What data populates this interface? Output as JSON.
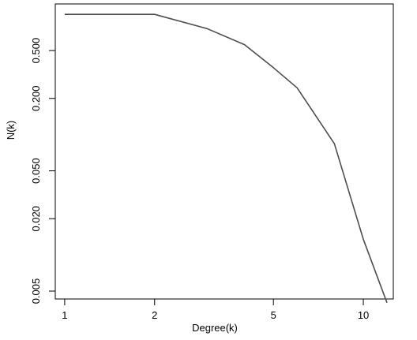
{
  "chart_data": {
    "type": "line",
    "xlabel": "Degree(k)",
    "ylabel": "N(k)",
    "x_scale": "log",
    "y_scale": "log",
    "xlim": [
      0.93,
      12.6
    ],
    "ylim": [
      0.0043,
      1.22
    ],
    "grid": false,
    "legend": "none",
    "x_ticks": [
      {
        "value": 1,
        "label": "1"
      },
      {
        "value": 2,
        "label": "2"
      },
      {
        "value": 5,
        "label": "5"
      },
      {
        "value": 10,
        "label": "10"
      }
    ],
    "y_ticks": [
      {
        "value": 0.005,
        "label": "0.005"
      },
      {
        "value": 0.02,
        "label": "0.020"
      },
      {
        "value": 0.05,
        "label": "0.050"
      },
      {
        "value": 0.2,
        "label": "0.200"
      },
      {
        "value": 0.5,
        "label": "0.500"
      }
    ],
    "series": [
      {
        "color": "#4d4d4d",
        "x": [
          1,
          2,
          3,
          4,
          5,
          6,
          8,
          10,
          12
        ],
        "y": [
          1.0,
          1.0,
          0.76,
          0.56,
          0.36,
          0.245,
          0.084,
          0.0135,
          0.004
        ]
      }
    ]
  }
}
